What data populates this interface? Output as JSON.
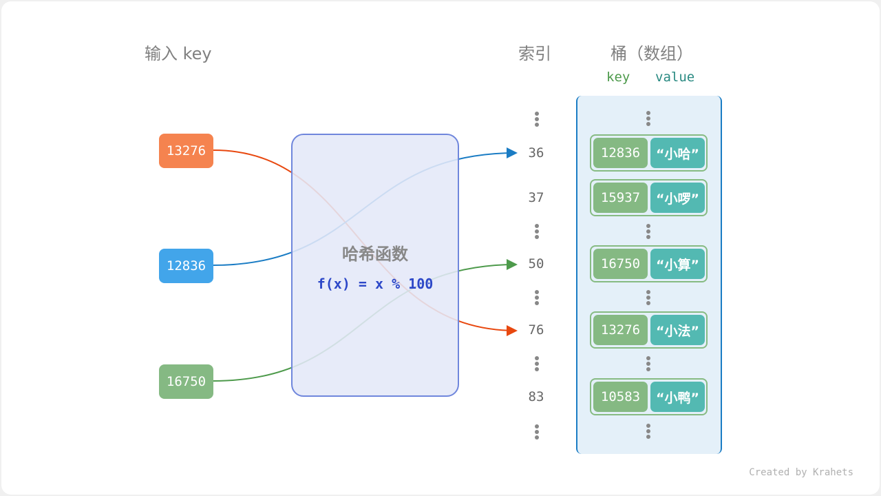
{
  "headers": {
    "input": "输入 key",
    "index": "索引",
    "bucket": "桶（数组）",
    "key": "key",
    "value": "value"
  },
  "hash_function": {
    "title": "哈希函数",
    "formula": "f(x) = x % 100"
  },
  "inputs": [
    {
      "key": "13276",
      "color": "#f5834f",
      "line_color": "#e8480f",
      "target_index": "76"
    },
    {
      "key": "12836",
      "color": "#42a5ea",
      "line_color": "#1a7cc4",
      "target_index": "36"
    },
    {
      "key": "16750",
      "color": "#85b983",
      "line_color": "#4d9a4b",
      "target_index": "50"
    }
  ],
  "buckets": [
    {
      "index": "36",
      "key": "12836",
      "value": "“小哈”"
    },
    {
      "index": "37",
      "key": "15937",
      "value": "“小啰”"
    },
    {
      "index": "50",
      "key": "16750",
      "value": "“小算”"
    },
    {
      "index": "76",
      "key": "13276",
      "value": "“小法”"
    },
    {
      "index": "83",
      "key": "10583",
      "value": "“小鸭”"
    }
  ],
  "credit": "Created by Krahets"
}
